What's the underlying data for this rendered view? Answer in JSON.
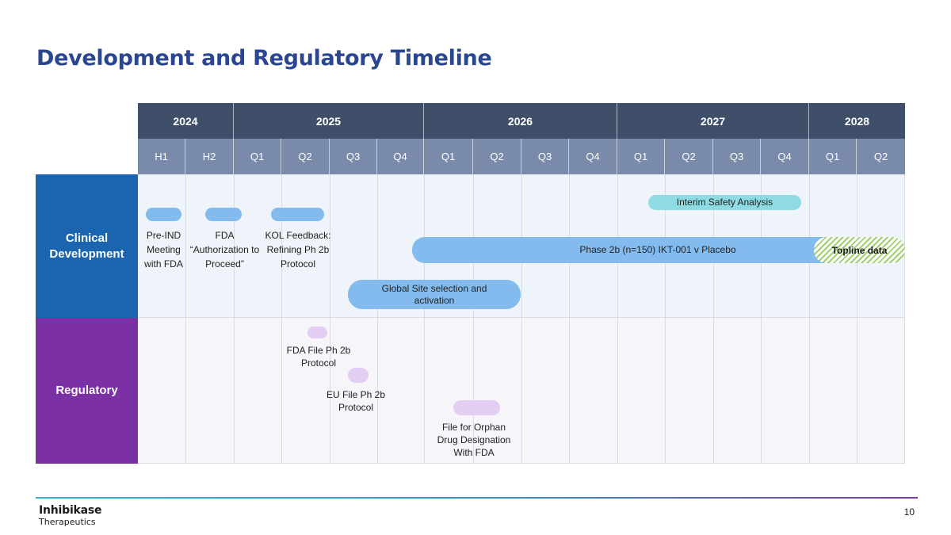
{
  "title": "Development and Regulatory Timeline",
  "years": [
    "2024",
    "2025",
    "2026",
    "2027",
    "2028"
  ],
  "periods": [
    "H1",
    "H2",
    "Q1",
    "Q2",
    "Q3",
    "Q4",
    "Q1",
    "Q2",
    "Q3",
    "Q4",
    "Q1",
    "Q2",
    "Q3",
    "Q4",
    "Q1",
    "Q2"
  ],
  "rows": {
    "clinical": "Clinical Development",
    "regulatory": "Regulatory"
  },
  "clinical": {
    "pre_ind": "Pre-IND Meeting with FDA",
    "fda_auth": "FDA “Authorization to Proceed”",
    "kol": "KOL Feedback: Refining Ph 2b Protocol",
    "interim": "Interim Safety Analysis",
    "phase2b": "Phase 2b (n=150) IKT-001 v Placebo",
    "topline": "Topline data",
    "global_site": "Global Site selection and activation"
  },
  "regulatory": {
    "fda_file": "FDA File Ph 2b Protocol",
    "eu_file": "EU File Ph 2b Protocol",
    "orphan": "File for Orphan Drug Designation With FDA"
  },
  "colors": {
    "title": "#2b4690",
    "year_header": "#3f4f6a",
    "period_header": "#7a8aaa",
    "clinical_label": "#1a64b0",
    "regulatory_label": "#7c30a6",
    "clinical_bar": "#83bbee",
    "interim_bar": "#8fdbe3",
    "regulatory_bar": "#e3cdf2",
    "topline_hatch": "#9fcf6f"
  },
  "footer": {
    "company_line1": "Inhibikase",
    "company_line2": "Therapeutics",
    "page_number": "10"
  }
}
